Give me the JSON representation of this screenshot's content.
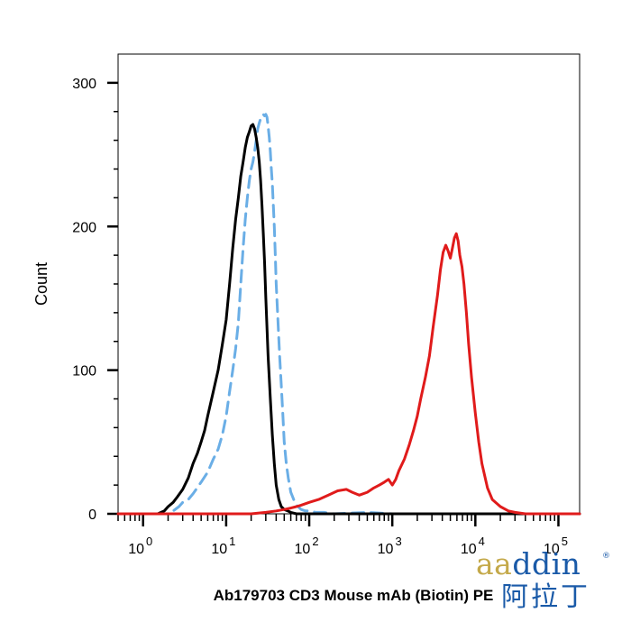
{
  "chart_data": {
    "type": "line",
    "title": "",
    "xlabel": "Ab179703 CD3 Mouse mAb (Biotin) PE",
    "ylabel": "Count",
    "x_scale": "log",
    "xlim": [
      0.5,
      180000
    ],
    "ylim": [
      0,
      320
    ],
    "y_ticks": [
      0,
      100,
      200,
      300
    ],
    "x_ticks": [
      {
        "base": "10",
        "exp": "0"
      },
      {
        "base": "10",
        "exp": "1"
      },
      {
        "base": "10",
        "exp": "2"
      },
      {
        "base": "10",
        "exp": "3"
      },
      {
        "base": "10",
        "exp": "4"
      },
      {
        "base": "10",
        "exp": "5"
      }
    ],
    "grid": false,
    "legend": "none",
    "series": [
      {
        "color": "#6aaee6",
        "style": "dashed",
        "x": [
          0.5,
          2,
          2.3,
          2.7,
          3,
          3.5,
          4,
          5,
          6,
          7,
          8,
          9,
          10,
          11,
          12,
          13,
          14,
          15,
          16,
          17,
          18,
          19,
          20,
          21,
          22,
          23,
          24,
          25,
          26,
          27,
          28,
          29,
          30,
          31,
          32,
          33,
          34,
          35,
          36,
          37,
          38,
          39,
          40,
          42,
          44,
          46,
          48,
          50,
          53,
          56,
          60,
          65,
          70,
          80,
          90,
          100,
          120,
          150,
          200,
          500,
          1000,
          5000,
          20000,
          180000
        ],
        "y": [
          0,
          0,
          2,
          5,
          8,
          10,
          14,
          22,
          29,
          38,
          45,
          55,
          68,
          85,
          100,
          115,
          133,
          160,
          185,
          205,
          220,
          232,
          240,
          245,
          252,
          260,
          268,
          272,
          275,
          276,
          278,
          277,
          278,
          276,
          270,
          262,
          252,
          240,
          230,
          215,
          200,
          180,
          160,
          135,
          110,
          90,
          70,
          50,
          35,
          25,
          15,
          10,
          6,
          3,
          2,
          2,
          1,
          1,
          0,
          1,
          0,
          0,
          0,
          0
        ]
      },
      {
        "color": "#000000",
        "style": "solid",
        "x": [
          0.5,
          1.5,
          1.8,
          2,
          2.3,
          2.6,
          3,
          3.5,
          4,
          4.5,
          5,
          5.5,
          6,
          7,
          8,
          9,
          10,
          11,
          12,
          13,
          14,
          15,
          16,
          17,
          18,
          19,
          20,
          21,
          22,
          23,
          24,
          25,
          26,
          27,
          28,
          29,
          30,
          32,
          34,
          36,
          38,
          40,
          43,
          46,
          50,
          55,
          60,
          70,
          80,
          100,
          150,
          200,
          300,
          180000
        ],
        "y": [
          0,
          0,
          2,
          5,
          8,
          12,
          17,
          25,
          35,
          42,
          50,
          58,
          68,
          85,
          100,
          118,
          135,
          160,
          185,
          205,
          220,
          235,
          245,
          255,
          262,
          266,
          270,
          271,
          268,
          262,
          255,
          245,
          232,
          215,
          195,
          175,
          150,
          110,
          80,
          55,
          35,
          20,
          10,
          5,
          3,
          2,
          1,
          0,
          0,
          0,
          0,
          0,
          0,
          0
        ]
      },
      {
        "color": "#e01b1b",
        "style": "solid",
        "x": [
          0.5,
          10,
          20,
          30,
          40,
          50,
          60,
          70,
          80,
          100,
          130,
          170,
          220,
          280,
          330,
          400,
          500,
          600,
          700,
          800,
          900,
          1000,
          1100,
          1200,
          1400,
          1600,
          1800,
          2000,
          2200,
          2500,
          2800,
          3100,
          3500,
          3800,
          4100,
          4400,
          4700,
          5000,
          5300,
          5600,
          5900,
          6200,
          6500,
          6900,
          7300,
          7800,
          8300,
          9000,
          10000,
          11000,
          12000,
          14000,
          16000,
          20000,
          25000,
          30000,
          40000,
          180000
        ],
        "y": [
          0,
          0,
          0,
          1,
          2,
          3,
          4,
          5,
          6,
          8,
          10,
          13,
          16,
          17,
          15,
          13,
          15,
          18,
          20,
          22,
          24,
          20,
          24,
          30,
          38,
          48,
          58,
          68,
          80,
          95,
          110,
          130,
          152,
          170,
          182,
          187,
          183,
          178,
          185,
          192,
          195,
          190,
          180,
          172,
          160,
          140,
          118,
          95,
          70,
          50,
          35,
          18,
          10,
          5,
          2,
          1,
          0,
          0
        ]
      }
    ]
  },
  "logo": {
    "accent": "aa",
    "word_rest": "ddin",
    "registered": "®",
    "chinese": "阿拉丁"
  }
}
